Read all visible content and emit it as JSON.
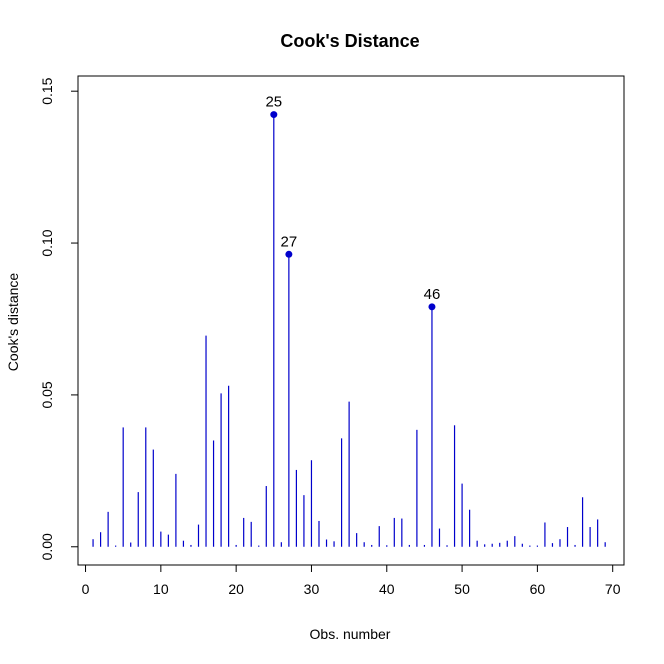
{
  "chart_data": {
    "type": "bar",
    "title": "Cook's Distance",
    "xlabel": "Obs. number",
    "ylabel": "Cook's distance",
    "xlim": [
      -1,
      71.5
    ],
    "ylim": [
      -0.006,
      0.155
    ],
    "xticks": [
      0,
      10,
      20,
      30,
      40,
      50,
      60,
      70
    ],
    "yticks": [
      0.0,
      0.05,
      0.1,
      0.15
    ],
    "ytick_labels": [
      "0.00",
      "0.05",
      "0.10",
      "0.15"
    ],
    "grid": false,
    "series": [
      {
        "color": "#0000cc",
        "x": [
          1,
          2,
          3,
          4,
          5,
          6,
          7,
          8,
          9,
          10,
          11,
          12,
          13,
          14,
          15,
          16,
          17,
          18,
          19,
          20,
          21,
          22,
          23,
          24,
          25,
          26,
          27,
          28,
          29,
          30,
          31,
          32,
          33,
          34,
          35,
          36,
          37,
          38,
          39,
          40,
          41,
          42,
          43,
          44,
          45,
          46,
          47,
          48,
          49,
          50,
          51,
          52,
          53,
          54,
          55,
          56,
          57,
          58,
          59,
          60,
          61,
          62,
          63,
          64,
          65,
          66,
          67,
          68,
          69
        ],
        "values": [
          0.0025,
          0.0048,
          0.0115,
          0.0004,
          0.0393,
          0.0014,
          0.018,
          0.0393,
          0.032,
          0.005,
          0.004,
          0.024,
          0.002,
          0.0006,
          0.0073,
          0.0695,
          0.035,
          0.0505,
          0.053,
          0.0006,
          0.0095,
          0.0082,
          0.0004,
          0.02,
          0.1423,
          0.0015,
          0.0963,
          0.0253,
          0.017,
          0.0285,
          0.0085,
          0.0024,
          0.0018,
          0.0357,
          0.0478,
          0.0045,
          0.0015,
          0.0006,
          0.0068,
          0.0005,
          0.0095,
          0.0093,
          0.0006,
          0.0385,
          0.0006,
          0.079,
          0.006,
          0.0005,
          0.04,
          0.0208,
          0.0122,
          0.002,
          0.0008,
          0.001,
          0.0013,
          0.002,
          0.0035,
          0.001,
          0.0004,
          0.0004,
          0.008,
          0.0012,
          0.0025,
          0.0065,
          0.0006,
          0.0163,
          0.0065,
          0.009,
          0.0015
        ]
      }
    ],
    "labeled_points": [
      {
        "x": 25,
        "value": 0.1423,
        "label": "25"
      },
      {
        "x": 27,
        "value": 0.0963,
        "label": "27"
      },
      {
        "x": 46,
        "value": 0.079,
        "label": "46"
      }
    ]
  }
}
